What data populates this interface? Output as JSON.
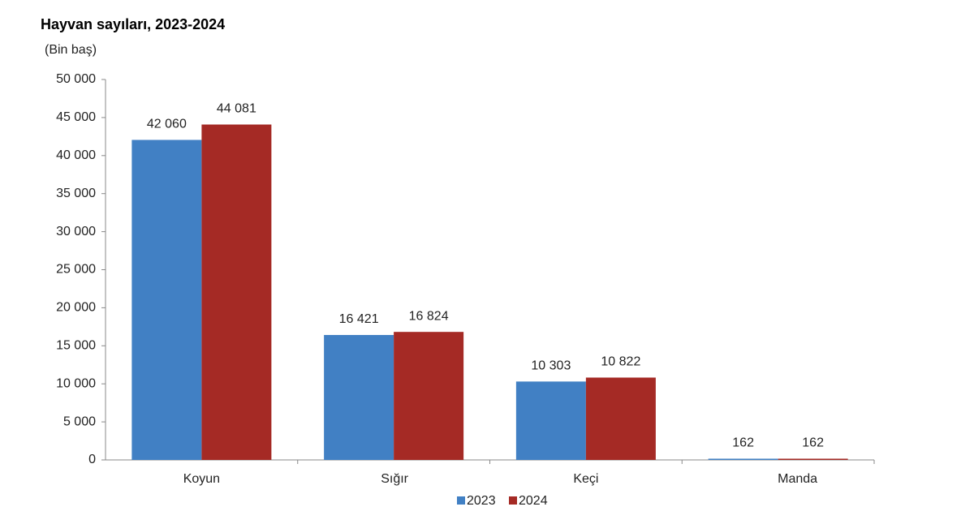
{
  "chart_data": {
    "type": "bar",
    "title": "Hayvan sayıları, 2023-2024",
    "y_label": "(Bin baş)",
    "categories": [
      "Koyun",
      "Sığır",
      "Keçi",
      "Manda"
    ],
    "series": [
      {
        "name": "2023",
        "color": "#4180c4",
        "values": [
          42060,
          16421,
          10303,
          162
        ],
        "value_labels": [
          "42 060",
          "16 421",
          "10 303",
          "162"
        ]
      },
      {
        "name": "2024",
        "color": "#a52a25",
        "values": [
          44081,
          16824,
          10822,
          162
        ],
        "value_labels": [
          "44 081",
          "16 824",
          "10 822",
          "162"
        ]
      }
    ],
    "ylim": [
      0,
      50000
    ],
    "yticks": [
      0,
      {
        "value": 5000,
        "label": "5 000"
      },
      {
        "value": 10000,
        "label": "10 000"
      },
      {
        "value": 15000,
        "label": "15 000"
      },
      {
        "value": 20000,
        "label": "20 000"
      },
      {
        "value": 25000,
        "label": "25 000"
      },
      {
        "value": 30000,
        "label": "30 000"
      },
      {
        "value": 35000,
        "label": "35 000"
      },
      {
        "value": 40000,
        "label": "40 000"
      },
      {
        "value": 45000,
        "label": "45 000"
      },
      {
        "value": 50000,
        "label": "50 000"
      }
    ],
    "grid": false,
    "legend": "bottom"
  }
}
